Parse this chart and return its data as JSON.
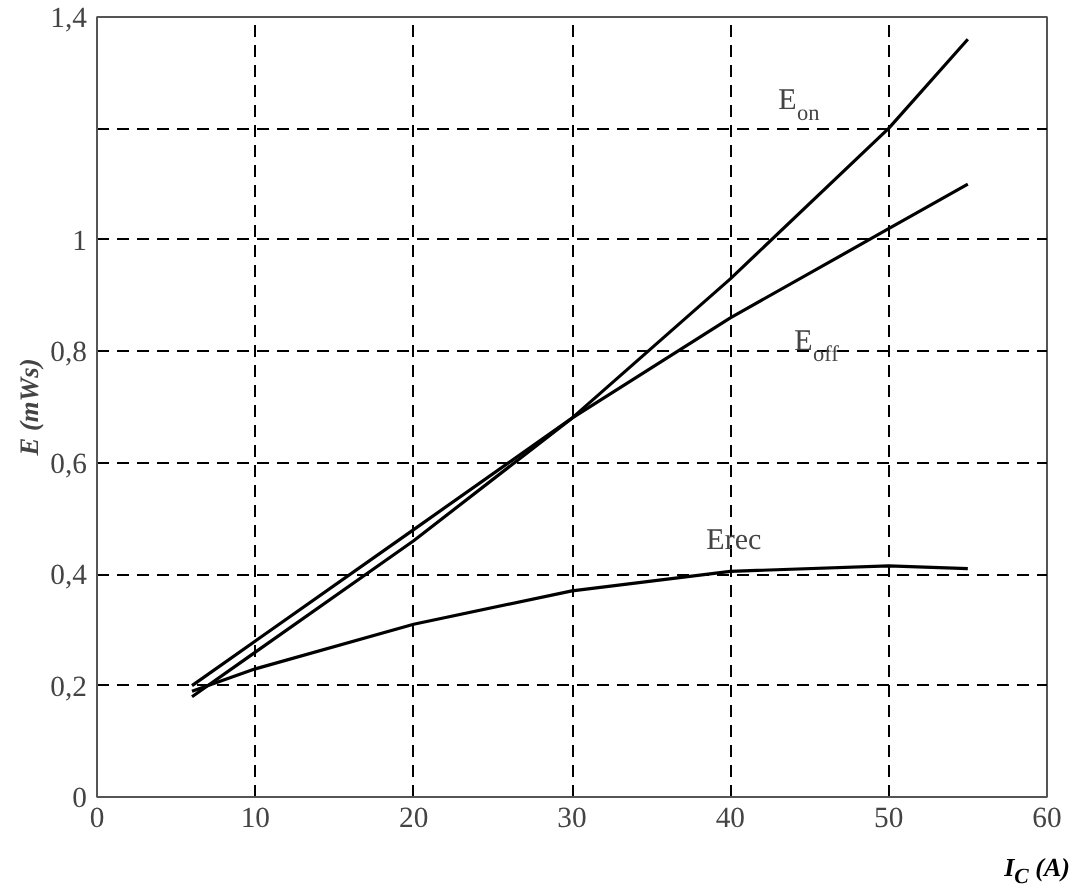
{
  "chart_data": {
    "type": "line",
    "xlabel": "I$_{C}$ (A)",
    "ylabel": "E (mWs)",
    "xlim": [
      0,
      60
    ],
    "ylim": [
      0,
      1.4
    ],
    "xticks": [
      0,
      10,
      20,
      30,
      40,
      50,
      60
    ],
    "yticks": [
      {
        "value": 0,
        "label": "0"
      },
      {
        "value": 0.2,
        "label": "0,2"
      },
      {
        "value": 0.4,
        "label": "0,4"
      },
      {
        "value": 0.6,
        "label": "0,6"
      },
      {
        "value": 0.8,
        "label": "0,8"
      },
      {
        "value": 1,
        "label": "1"
      },
      {
        "value": 1.2,
        "label": null
      },
      {
        "value": 1.4,
        "label": "1,4"
      }
    ],
    "grid": true,
    "marker": "none",
    "line_style": "solid",
    "series": [
      {
        "name": "E$_{on}$",
        "color": "#000000",
        "x": [
          6,
          10,
          20,
          30,
          40,
          50,
          55
        ],
        "values": [
          0.18,
          0.26,
          0.46,
          0.68,
          0.93,
          1.2,
          1.36
        ]
      },
      {
        "name": "E$_{off}$",
        "color": "#000000",
        "x": [
          6,
          10,
          20,
          30,
          40,
          50,
          55
        ],
        "values": [
          0.2,
          0.28,
          0.48,
          0.68,
          0.86,
          1.02,
          1.1
        ]
      },
      {
        "name": "Erec",
        "color": "#000000",
        "x": [
          6,
          10,
          20,
          30,
          40,
          50,
          55
        ],
        "values": [
          0.19,
          0.23,
          0.31,
          0.37,
          0.405,
          0.415,
          0.41
        ]
      }
    ]
  }
}
